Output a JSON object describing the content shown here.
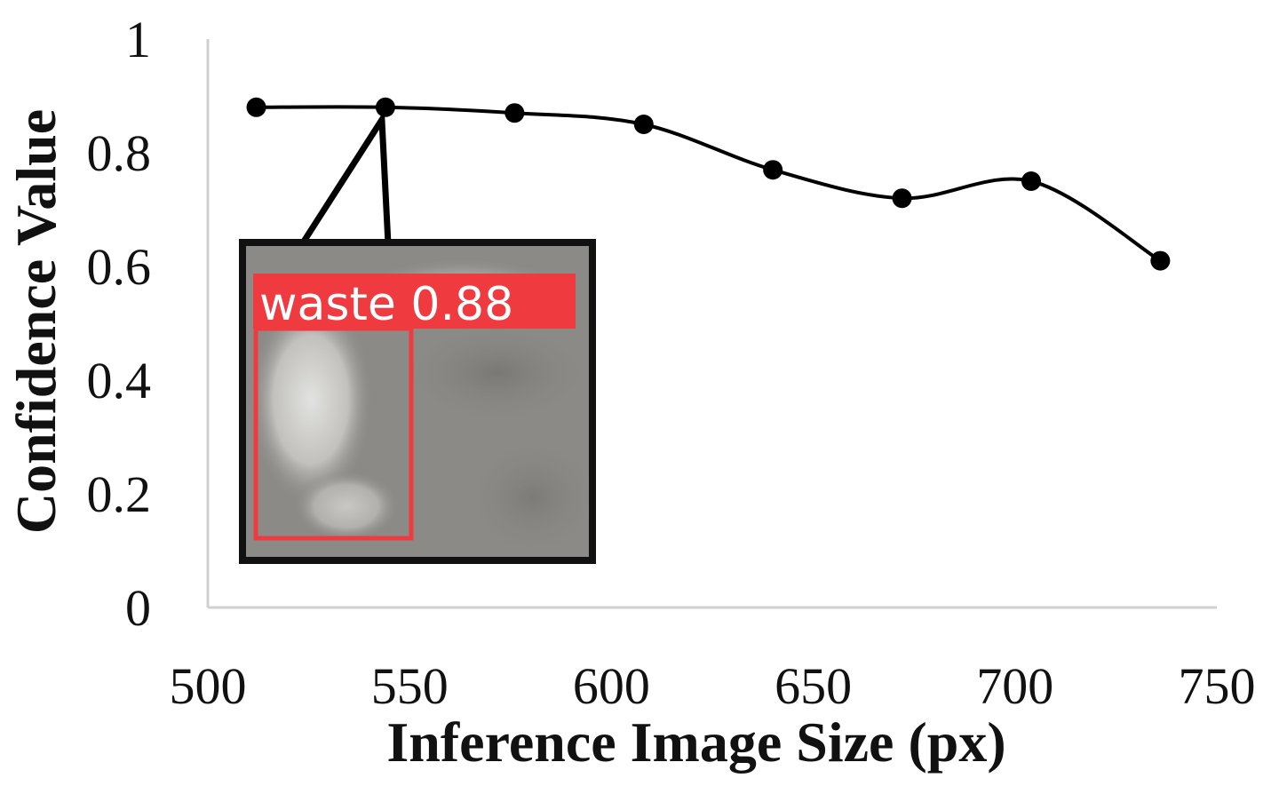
{
  "chart_data": {
    "type": "line",
    "title": "",
    "xlabel": "Inference Image Size (px)",
    "ylabel": "Confidence Value",
    "xlim": [
      500,
      750
    ],
    "ylim": [
      0,
      1
    ],
    "x_ticks": [
      "500",
      "550",
      "600",
      "650",
      "700",
      "750"
    ],
    "y_ticks": [
      "0",
      "0.2",
      "0.4",
      "0.6",
      "0.8",
      "1"
    ],
    "series": [
      {
        "x": [
          512,
          544,
          576,
          608,
          640,
          672,
          704,
          736
        ],
        "y": [
          0.88,
          0.88,
          0.87,
          0.85,
          0.77,
          0.72,
          0.75,
          0.61
        ],
        "color": "#000000",
        "smooth": true,
        "markers": true
      }
    ],
    "grid": false,
    "annotation": {
      "target_x": 544,
      "detection_label": "waste 0.88",
      "label_color": "#ef3b3f",
      "inset_background": "#8c8a86"
    }
  }
}
